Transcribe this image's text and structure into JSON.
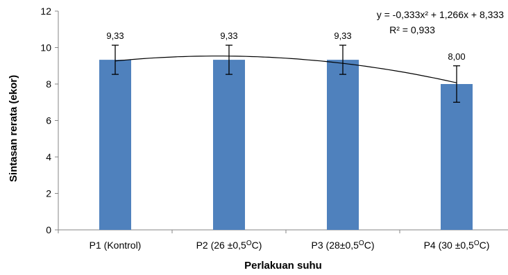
{
  "chart_data": {
    "type": "bar",
    "categories": [
      "P1 (Kontrol)",
      "P2 (26 ±0,5OC)",
      "P3 (28±0,5OC)",
      "P4 (30 ±0,5OC)"
    ],
    "category_parts": [
      {
        "main": "P1 (Kontrol)",
        "sup": "",
        "tail": ""
      },
      {
        "main": "P2 (26 ±0,5",
        "sup": "O",
        "tail": "C)"
      },
      {
        "main": "P3 (28±0,5",
        "sup": "O",
        "tail": "C)"
      },
      {
        "main": "P4 (30 ±0,5",
        "sup": "O",
        "tail": "C)"
      }
    ],
    "values": [
      9.33,
      9.33,
      9.33,
      8.0
    ],
    "data_labels": [
      "9,33",
      "9,33",
      "9,33",
      "8,00"
    ],
    "error": [
      0.8,
      0.8,
      0.8,
      1.0
    ],
    "xlabel": "Perlakuan suhu",
    "ylabel": "Sintasan rerata (ekor)",
    "ylim": [
      0,
      12
    ],
    "yticks": [
      0,
      2,
      4,
      6,
      8,
      10,
      12
    ],
    "grid": false,
    "bar_color": "#4f81bd",
    "trendline": {
      "type": "polynomial",
      "coefficients": [
        -0.333,
        1.266,
        8.333
      ],
      "equation_line1": "y = -0,333x² + 1,266x + 8,333",
      "equation_line2": "R² = 0,933"
    }
  }
}
